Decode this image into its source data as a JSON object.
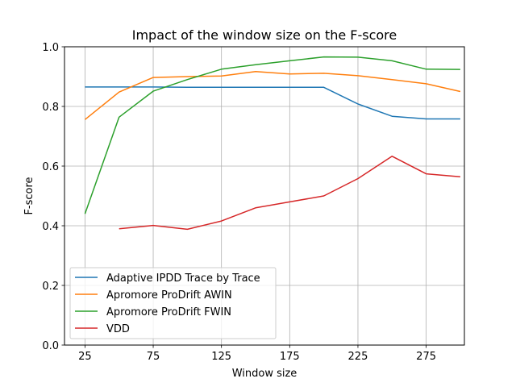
{
  "chart_data": {
    "type": "line",
    "title": "Impact of the window size on the F-score",
    "xlabel": "Window size",
    "ylabel": "F-score",
    "xlim": [
      10,
      303
    ],
    "ylim": [
      0,
      1
    ],
    "xticks": [
      25,
      75,
      125,
      175,
      225,
      275
    ],
    "yticks": [
      0.0,
      0.2,
      0.4,
      0.6,
      0.8,
      1.0
    ],
    "grid": true,
    "legend_position": "lower-left",
    "series": [
      {
        "name": "Adaptive IPDD Trace by Trace",
        "color": "#1f77b4",
        "x": [
          25,
          50,
          75,
          100,
          125,
          150,
          175,
          200,
          225,
          250,
          275,
          300
        ],
        "y": [
          0.865,
          0.865,
          0.865,
          0.864,
          0.864,
          0.864,
          0.864,
          0.864,
          0.808,
          0.767,
          0.758,
          0.758
        ]
      },
      {
        "name": "Apromore ProDrift AWIN",
        "color": "#ff7f0e",
        "x": [
          25,
          50,
          75,
          100,
          125,
          150,
          175,
          200,
          225,
          250,
          275,
          300
        ],
        "y": [
          0.756,
          0.848,
          0.897,
          0.9,
          0.902,
          0.917,
          0.909,
          0.911,
          0.903,
          0.89,
          0.876,
          0.85
        ]
      },
      {
        "name": "Apromore ProDrift FWIN",
        "color": "#2ca02c",
        "x": [
          25,
          50,
          75,
          100,
          125,
          150,
          175,
          200,
          225,
          250,
          275,
          300
        ],
        "y": [
          0.44,
          0.764,
          0.851,
          0.89,
          0.925,
          0.94,
          0.953,
          0.966,
          0.965,
          0.953,
          0.925,
          0.924
        ]
      },
      {
        "name": "VDD",
        "color": "#d62728",
        "x": [
          50,
          75,
          100,
          125,
          150,
          175,
          200,
          225,
          250,
          275,
          300
        ],
        "y": [
          0.39,
          0.401,
          0.388,
          0.416,
          0.46,
          0.48,
          0.5,
          0.558,
          0.633,
          0.574,
          0.564
        ]
      }
    ]
  }
}
